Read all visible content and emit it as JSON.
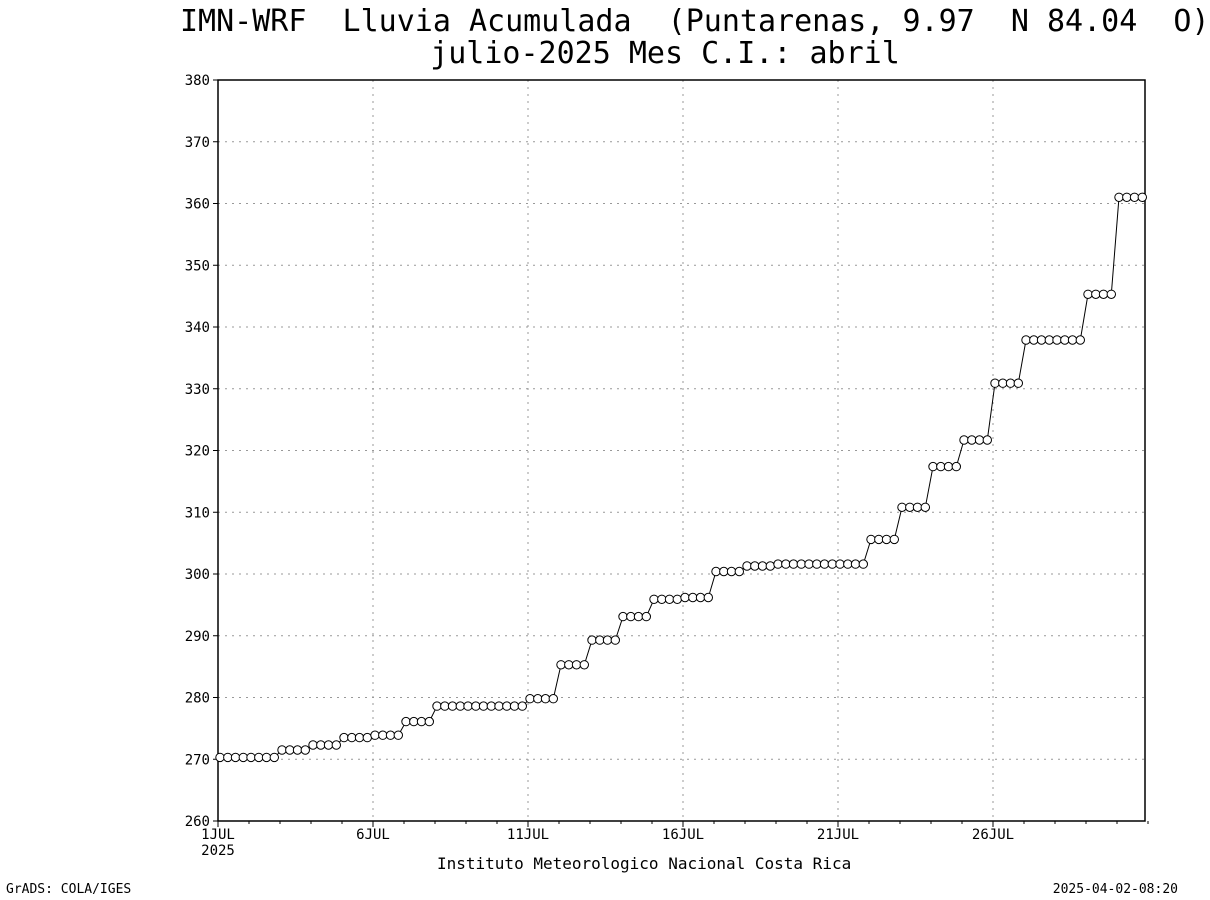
{
  "chart_data": {
    "type": "line",
    "title": "IMN-WRF  Lluvia Acumulada  (Puntarenas, 9.97  N 84.04  O)",
    "subtitle": "julio-2025 Mes C.I.: abril",
    "xlabel": "",
    "ylabel": "",
    "x_ticks": [
      "1JUL",
      "6JUL",
      "11JUL",
      "16JUL",
      "21JUL",
      "26JUL"
    ],
    "x_start_label": "2025",
    "x_range_days": [
      1,
      31
    ],
    "ylim": [
      260,
      380
    ],
    "y_ticks": [
      260,
      270,
      280,
      290,
      300,
      310,
      320,
      330,
      340,
      350,
      360,
      370,
      380
    ],
    "grid": true,
    "marker": "open-circle",
    "points_per_day": 4,
    "series": [
      {
        "values": [
          270.3,
          270.3,
          270.3,
          270.3,
          270.3,
          270.3,
          270.3,
          270.3,
          271.5,
          271.5,
          271.5,
          271.5,
          272.3,
          272.3,
          272.3,
          272.3,
          273.5,
          273.5,
          273.5,
          273.5,
          273.9,
          273.9,
          273.9,
          273.9,
          276.1,
          276.1,
          276.1,
          276.1,
          278.6,
          278.6,
          278.6,
          278.6,
          278.6,
          278.6,
          278.6,
          278.6,
          278.6,
          278.6,
          278.6,
          278.6,
          279.8,
          279.8,
          279.8,
          279.8,
          285.3,
          285.3,
          285.3,
          285.3,
          289.3,
          289.3,
          289.3,
          289.3,
          293.1,
          293.1,
          293.1,
          293.1,
          295.9,
          295.9,
          295.9,
          295.9,
          296.2,
          296.2,
          296.2,
          296.2,
          300.4,
          300.4,
          300.4,
          300.4,
          301.3,
          301.3,
          301.3,
          301.3,
          301.6,
          301.6,
          301.6,
          301.6,
          301.6,
          301.6,
          301.6,
          301.6,
          301.6,
          301.6,
          301.6,
          301.6,
          305.6,
          305.6,
          305.6,
          305.6,
          310.8,
          310.8,
          310.8,
          310.8,
          317.4,
          317.4,
          317.4,
          317.4,
          321.7,
          321.7,
          321.7,
          321.7,
          330.9,
          330.9,
          330.9,
          330.9,
          337.9,
          337.9,
          337.9,
          337.9,
          337.9,
          337.9,
          337.9,
          337.9,
          345.3,
          345.3,
          345.3,
          345.3,
          361.0,
          361.0,
          361.0,
          361.0
        ]
      }
    ]
  },
  "footer": {
    "institution": "Instituto Meteorologico Nacional Costa Rica",
    "credit_left": "GrADS: COLA/IGES",
    "credit_right": "2025-04-02-08:20"
  },
  "colors": {
    "line": "#000000",
    "marker_fill": "#ffffff",
    "grid": "#999999",
    "background": "#ffffff"
  }
}
